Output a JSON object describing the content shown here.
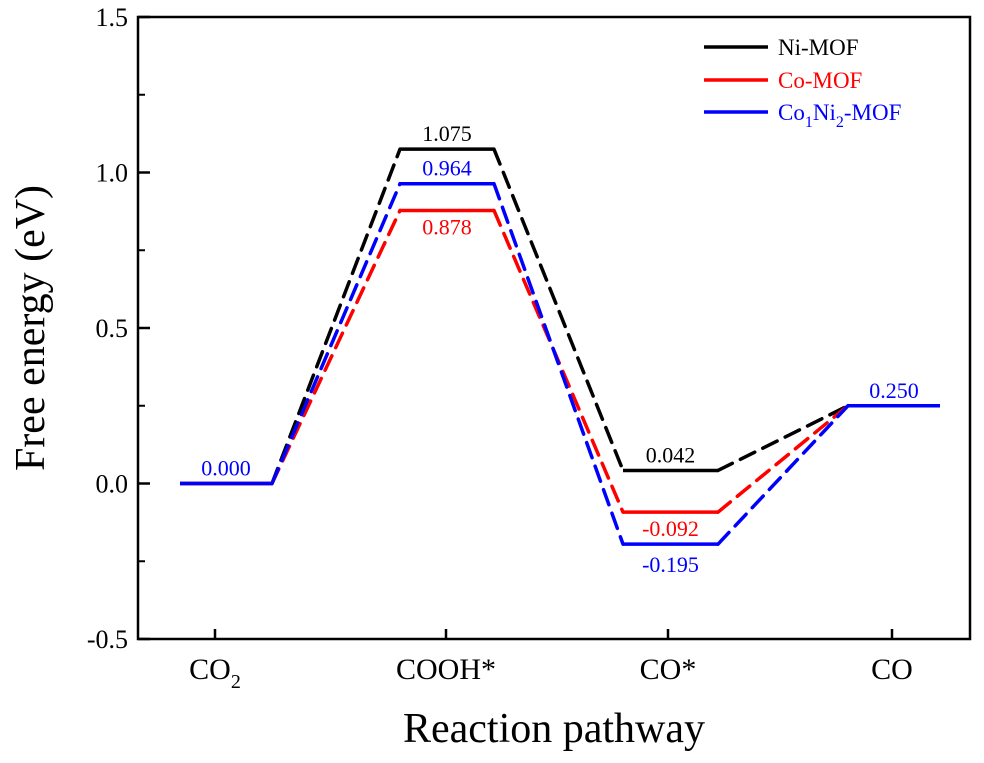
{
  "chart_data": {
    "type": "line",
    "title": "",
    "xlabel": "Reaction pathway",
    "ylabel": "Free energy (eV)",
    "ylim": [
      -0.5,
      1.5
    ],
    "yticks": [
      "-0.5",
      "0.0",
      "0.5",
      "1.0",
      "1.5"
    ],
    "categories": [
      "CO2",
      "COOH*",
      "CO*",
      "CO"
    ],
    "category_labels": [
      {
        "main": "CO",
        "sub": "2"
      },
      {
        "main": "COOH*",
        "sub": ""
      },
      {
        "main": "CO*",
        "sub": ""
      },
      {
        "main": "CO",
        "sub": ""
      }
    ],
    "legend_position": "top-right",
    "series": [
      {
        "name": "Ni-MOF",
        "legend": {
          "pre": "Ni-MOF",
          "sub1": "",
          "mid": "",
          "sub2": "",
          "post": ""
        },
        "color": "#000000",
        "values": [
          0.0,
          1.075,
          0.042,
          0.25
        ],
        "labels": [
          "",
          "1.075",
          "0.042",
          ""
        ]
      },
      {
        "name": "Co-MOF",
        "legend": {
          "pre": "Co-MOF",
          "sub1": "",
          "mid": "",
          "sub2": "",
          "post": ""
        },
        "color": "#ff0000",
        "values": [
          0.0,
          0.878,
          -0.092,
          0.25
        ],
        "labels": [
          "",
          "0.878",
          "-0.092",
          ""
        ]
      },
      {
        "name": "Co1Ni2-MOF",
        "legend": {
          "pre": "Co",
          "sub1": "1",
          "mid": "Ni",
          "sub2": "2",
          "post": "-MOF"
        },
        "color": "#0000ff",
        "values": [
          0.0,
          0.964,
          -0.195,
          0.25
        ],
        "labels": [
          "0.000",
          "0.964",
          "-0.195",
          "0.250"
        ]
      }
    ]
  }
}
